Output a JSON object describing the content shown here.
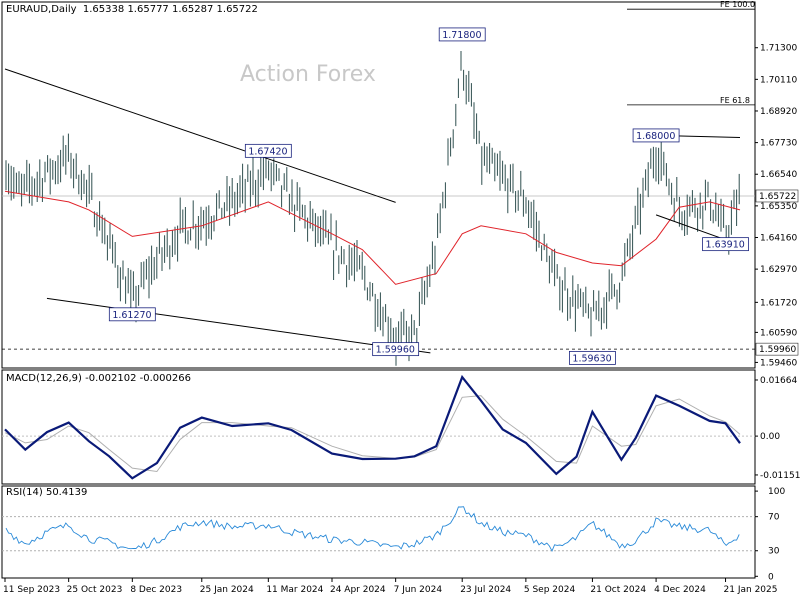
{
  "chart_data": [
    {
      "type": "line",
      "panel": "price",
      "title": "EURAUD,Daily",
      "ohlc": [
        "1.65338",
        "1.65777",
        "1.65287",
        "1.65722"
      ],
      "watermark": "Action Forex",
      "x_ticks": [
        "11 Sep 2023",
        "25 Oct 2023",
        "8 Dec 2023",
        "25 Jan 2024",
        "11 Mar 2024",
        "24 Apr 2024",
        "7 Jun 2024",
        "23 Jul 2024",
        "5 Sep 2024",
        "21 Oct 2024",
        "4 Dec 2024",
        "21 Jan 2025"
      ],
      "y_ticks": [
        1.5946,
        1.6059,
        1.6172,
        1.6297,
        1.6416,
        1.6535,
        1.6654,
        1.6773,
        1.6892,
        1.7011,
        1.713
      ],
      "y_tick_labels": [
        "1.59460",
        "1.60590",
        "1.61720",
        "1.62970",
        "1.64160",
        "1.65350",
        "1.66540",
        "1.67730",
        "1.68920",
        "1.70110",
        "1.71300"
      ],
      "ylim": [
        1.5925,
        1.7302
      ],
      "current_price": {
        "value": 1.65722,
        "label": "1.65722"
      },
      "horizontal_lines": [
        {
          "value": 1.5996,
          "label": "1.59960",
          "style": "dashed"
        }
      ],
      "fib_levels": [
        {
          "label": "FE 100.0",
          "value": 1.7275
        },
        {
          "label": "FE 61.8",
          "value": 1.6915
        }
      ],
      "annotations": [
        {
          "text": "1.71800",
          "date": "23 Jul 2024",
          "value": 1.718
        },
        {
          "text": "1.67420",
          "date": "11 Mar 2024",
          "value": 1.6742
        },
        {
          "text": "1.61270",
          "date": "8 Dec 2023",
          "value": 1.6127
        },
        {
          "text": "1.59960",
          "date": "7 Jun 2024",
          "value": 1.5996
        },
        {
          "text": "1.59630",
          "date": "21 Oct 2024",
          "value": 1.5963
        },
        {
          "text": "1.68000",
          "date": "4 Dec 2024",
          "value": 1.68
        },
        {
          "text": "1.63910",
          "date": "21 Jan 2025",
          "value": 1.6391
        }
      ],
      "series": [
        {
          "kind": "price_bars",
          "x": [
            "11 Sep 2023",
            "20 Sep 2023",
            "25 Oct 2023",
            "8 Nov 2023",
            "8 Dec 2023",
            "20 Dec 2023",
            "10 Jan 2024",
            "25 Jan 2024",
            "15 Feb 2024",
            "11 Mar 2024",
            "27 Mar 2024",
            "24 Apr 2024",
            "15 May 2024",
            "7 Jun 2024",
            "20 Jun 2024",
            "5 Jul 2024",
            "23 Jul 2024",
            "5 Aug 2024",
            "5 Sep 2024",
            "26 Sep 2024",
            "21 Oct 2024",
            "10 Nov 2024",
            "4 Dec 2024",
            "20 Dec 2024",
            "10 Jan 2025",
            "21 Jan 2025",
            "31 Jan 2025"
          ],
          "values": [
            1.669,
            1.658,
            1.672,
            1.658,
            1.617,
            1.629,
            1.645,
            1.648,
            1.655,
            1.667,
            1.655,
            1.638,
            1.628,
            1.603,
            1.605,
            1.637,
            1.708,
            1.671,
            1.655,
            1.625,
            1.611,
            1.626,
            1.675,
            1.652,
            1.656,
            1.642,
            1.657
          ]
        },
        {
          "kind": "moving_average",
          "x": [
            "11 Sep 2023",
            "25 Oct 2023",
            "8 Nov 2023",
            "8 Dec 2023",
            "25 Jan 2024",
            "11 Mar 2024",
            "24 Apr 2024",
            "15 May 2024",
            "7 Jun 2024",
            "5 Jul 2024",
            "23 Jul 2024",
            "5 Aug 2024",
            "5 Sep 2024",
            "26 Sep 2024",
            "21 Oct 2024",
            "10 Nov 2024",
            "4 Dec 2024",
            "20 Dec 2024",
            "10 Jan 2025",
            "31 Jan 2025"
          ],
          "values": [
            1.659,
            1.655,
            1.652,
            1.642,
            1.646,
            1.655,
            1.643,
            1.637,
            1.624,
            1.628,
            1.643,
            1.646,
            1.643,
            1.636,
            1.632,
            1.631,
            1.641,
            1.653,
            1.655,
            1.652
          ]
        }
      ],
      "trendlines": [
        {
          "from": {
            "date": "11 Sep 2023",
            "value": 1.705
          },
          "to": {
            "date": "7 Jun 2024",
            "value": 1.6548
          }
        },
        {
          "from": {
            "date": "10 Oct 2023",
            "value": 1.6187
          },
          "to": {
            "date": "1 Jul 2024",
            "value": 1.5982
          }
        },
        {
          "from": {
            "date": "4 Dec 2024",
            "value": 1.68
          },
          "to": {
            "date": "31 Jan 2025",
            "value": 1.6792
          }
        },
        {
          "from": {
            "date": "4 Dec 2024",
            "value": 1.6501
          },
          "to": {
            "date": "31 Jan 2025",
            "value": 1.6388
          }
        }
      ]
    },
    {
      "type": "line",
      "panel": "macd",
      "title": "MACD(12,26,9) -0.002102 -0.000266",
      "y_tick_labels": [
        "0.01664",
        "0.00",
        "-0.011515"
      ],
      "y_ticks": [
        0.01664,
        0.0,
        -0.011515
      ],
      "ylim": [
        -0.0142,
        0.0196
      ],
      "series": [
        {
          "kind": "macd",
          "x": [
            "11 Sep 2023",
            "25 Sep 2023",
            "10 Oct 2023",
            "25 Oct 2023",
            "8 Nov 2023",
            "22 Nov 2023",
            "8 Dec 2023",
            "25 Dec 2023",
            "10 Jan 2024",
            "25 Jan 2024",
            "15 Feb 2024",
            "11 Mar 2024",
            "27 Mar 2024",
            "24 Apr 2024",
            "15 May 2024",
            "7 Jun 2024",
            "20 Jun 2024",
            "5 Jul 2024",
            "23 Jul 2024",
            "5 Aug 2024",
            "20 Aug 2024",
            "5 Sep 2024",
            "26 Sep 2024",
            "10 Oct 2024",
            "21 Oct 2024",
            "10 Nov 2024",
            "20 Nov 2024",
            "4 Dec 2024",
            "20 Dec 2024",
            "10 Jan 2025",
            "21 Jan 2025",
            "31 Jan 2025"
          ],
          "values": [
            0.002,
            -0.004,
            0.0012,
            0.004,
            -0.0015,
            -0.006,
            -0.0125,
            -0.008,
            0.0025,
            0.0055,
            0.003,
            0.0038,
            0.0018,
            -0.0052,
            -0.0068,
            -0.0067,
            -0.006,
            -0.003,
            0.0175,
            0.0105,
            0.002,
            -0.002,
            -0.0112,
            -0.0061,
            0.0072,
            -0.007,
            -0.0005,
            0.012,
            0.009,
            0.0045,
            0.0038,
            -0.0021
          ]
        },
        {
          "kind": "signal",
          "x": [
            "11 Sep 2023",
            "25 Sep 2023",
            "10 Oct 2023",
            "25 Oct 2023",
            "8 Nov 2023",
            "22 Nov 2023",
            "8 Dec 2023",
            "25 Dec 2023",
            "10 Jan 2024",
            "25 Jan 2024",
            "15 Feb 2024",
            "11 Mar 2024",
            "27 Mar 2024",
            "24 Apr 2024",
            "15 May 2024",
            "7 Jun 2024",
            "20 Jun 2024",
            "5 Jul 2024",
            "23 Jul 2024",
            "5 Aug 2024",
            "20 Aug 2024",
            "5 Sep 2024",
            "26 Sep 2024",
            "10 Oct 2024",
            "21 Oct 2024",
            "10 Nov 2024",
            "20 Nov 2024",
            "4 Dec 2024",
            "20 Dec 2024",
            "10 Jan 2025",
            "21 Jan 2025",
            "31 Jan 2025"
          ],
          "values": [
            0.001,
            -0.002,
            -0.001,
            0.003,
            0.001,
            -0.004,
            -0.0095,
            -0.0105,
            -0.001,
            0.004,
            0.004,
            0.003,
            0.0025,
            -0.003,
            -0.0058,
            -0.0066,
            -0.0062,
            -0.004,
            0.0115,
            0.012,
            0.005,
            0.0,
            -0.0075,
            -0.008,
            0.003,
            -0.003,
            -0.0025,
            0.009,
            0.011,
            0.006,
            0.0042,
            0.0005
          ]
        }
      ]
    },
    {
      "type": "line",
      "panel": "rsi",
      "title": "RSI(14) 50.4139",
      "y_tick_labels": [
        "100",
        "70",
        "30",
        "0"
      ],
      "y_ticks": [
        100,
        70,
        30,
        0
      ],
      "ylim": [
        0,
        100
      ],
      "levels": [
        70,
        30
      ],
      "series": [
        {
          "kind": "rsi",
          "x": [
            "11 Sep 2023",
            "25 Sep 2023",
            "10 Oct 2023",
            "25 Oct 2023",
            "8 Nov 2023",
            "22 Nov 2023",
            "8 Dec 2023",
            "25 Dec 2023",
            "10 Jan 2024",
            "25 Jan 2024",
            "15 Feb 2024",
            "11 Mar 2024",
            "27 Mar 2024",
            "24 Apr 2024",
            "15 May 2024",
            "7 Jun 2024",
            "20 Jun 2024",
            "5 Jul 2024",
            "23 Jul 2024",
            "5 Aug 2024",
            "20 Aug 2024",
            "5 Sep 2024",
            "26 Sep 2024",
            "10 Oct 2024",
            "21 Oct 2024",
            "10 Nov 2024",
            "20 Nov 2024",
            "4 Dec 2024",
            "20 Dec 2024",
            "10 Jan 2025",
            "21 Jan 2025",
            "31 Jan 2025"
          ],
          "values": [
            55,
            38,
            52,
            60,
            44,
            40,
            31,
            42,
            58,
            64,
            58,
            60,
            52,
            43,
            40,
            34,
            38,
            48,
            82,
            62,
            52,
            48,
            32,
            45,
            62,
            36,
            42,
            65,
            58,
            54,
            36,
            50
          ]
        }
      ]
    }
  ]
}
